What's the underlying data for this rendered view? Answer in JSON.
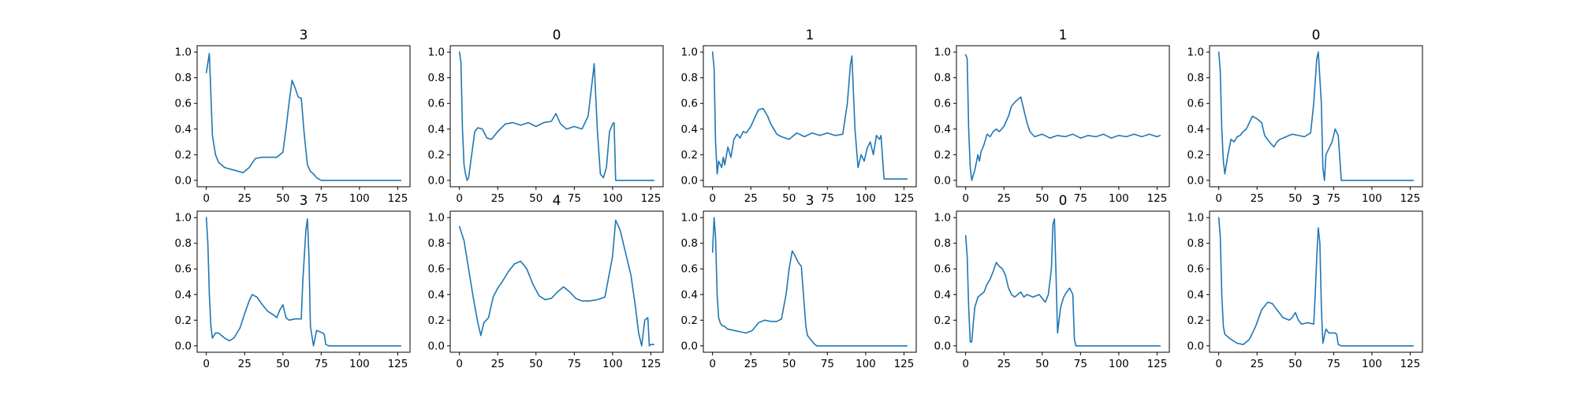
{
  "colors": {
    "series": "#1f77b4",
    "axes": "#000000",
    "background": "#ffffff"
  },
  "chart_data": [
    {
      "type": "line",
      "title": "3",
      "xlim": [
        -6,
        133
      ],
      "ylim": [
        -0.05,
        1.05
      ],
      "xticks": [
        "0",
        "25",
        "50",
        "75",
        "100",
        "125"
      ],
      "yticks": [
        "0.0",
        "0.2",
        "0.4",
        "0.6",
        "0.8",
        "1.0"
      ],
      "grid": false,
      "series": [
        {
          "x": [
            0,
            2,
            4,
            6,
            8,
            12,
            18,
            24,
            28,
            32,
            36,
            40,
            46,
            50,
            52,
            54,
            56,
            58,
            60,
            62,
            64,
            66,
            68,
            70,
            72,
            75,
            80,
            90,
            100,
            110,
            127
          ],
          "values": [
            0.84,
            0.99,
            0.35,
            0.2,
            0.14,
            0.1,
            0.08,
            0.06,
            0.1,
            0.17,
            0.18,
            0.18,
            0.18,
            0.22,
            0.4,
            0.6,
            0.78,
            0.72,
            0.65,
            0.64,
            0.35,
            0.12,
            0.07,
            0.05,
            0.02,
            0.0,
            0.0,
            0.0,
            0.0,
            0.0,
            0.0
          ]
        }
      ]
    },
    {
      "type": "line",
      "title": "0",
      "xlim": [
        -6,
        133
      ],
      "ylim": [
        -0.05,
        1.05
      ],
      "xticks": [
        "0",
        "25",
        "50",
        "75",
        "100",
        "125"
      ],
      "yticks": [
        "0.0",
        "0.2",
        "0.4",
        "0.6",
        "0.8",
        "1.0"
      ],
      "grid": false,
      "series": [
        {
          "x": [
            0,
            1,
            2,
            3,
            4,
            5,
            6,
            8,
            10,
            12,
            15,
            18,
            21,
            25,
            30,
            35,
            40,
            45,
            50,
            55,
            60,
            63,
            66,
            70,
            75,
            80,
            84,
            86,
            88,
            90,
            92,
            94,
            96,
            98,
            100,
            101,
            102,
            110,
            120,
            127
          ],
          "values": [
            1.0,
            0.92,
            0.4,
            0.12,
            0.05,
            0.0,
            0.02,
            0.2,
            0.38,
            0.41,
            0.4,
            0.33,
            0.32,
            0.38,
            0.44,
            0.45,
            0.43,
            0.45,
            0.42,
            0.45,
            0.46,
            0.52,
            0.44,
            0.4,
            0.42,
            0.4,
            0.5,
            0.7,
            0.91,
            0.4,
            0.05,
            0.02,
            0.1,
            0.38,
            0.44,
            0.45,
            0.0,
            0.0,
            0.0,
            0.0
          ]
        }
      ]
    },
    {
      "type": "line",
      "title": "1",
      "xlim": [
        -6,
        133
      ],
      "ylim": [
        -0.05,
        1.05
      ],
      "xticks": [
        "0",
        "25",
        "50",
        "75",
        "100",
        "125"
      ],
      "yticks": [
        "0.0",
        "0.2",
        "0.4",
        "0.6",
        "0.8",
        "1.0"
      ],
      "grid": false,
      "series": [
        {
          "x": [
            0,
            1,
            2,
            3,
            4,
            6,
            7,
            8,
            10,
            12,
            14,
            16,
            18,
            20,
            22,
            25,
            28,
            30,
            33,
            36,
            38,
            40,
            42,
            45,
            50,
            55,
            60,
            65,
            70,
            75,
            80,
            85,
            88,
            90,
            91,
            93,
            95,
            97,
            99,
            101,
            103,
            105,
            107,
            109,
            110,
            112,
            120,
            127
          ],
          "values": [
            1.0,
            0.88,
            0.3,
            0.05,
            0.15,
            0.1,
            0.18,
            0.12,
            0.26,
            0.18,
            0.32,
            0.36,
            0.33,
            0.38,
            0.37,
            0.42,
            0.5,
            0.55,
            0.56,
            0.5,
            0.44,
            0.4,
            0.36,
            0.34,
            0.32,
            0.37,
            0.34,
            0.37,
            0.35,
            0.37,
            0.35,
            0.36,
            0.6,
            0.9,
            0.97,
            0.4,
            0.1,
            0.2,
            0.15,
            0.25,
            0.3,
            0.2,
            0.35,
            0.32,
            0.35,
            0.01,
            0.01,
            0.01
          ]
        }
      ]
    },
    {
      "type": "line",
      "title": "1",
      "xlim": [
        -6,
        133
      ],
      "ylim": [
        -0.05,
        1.05
      ],
      "xticks": [
        "0",
        "25",
        "50",
        "75",
        "100",
        "125"
      ],
      "yticks": [
        "0.0",
        "0.2",
        "0.4",
        "0.6",
        "0.8",
        "1.0"
      ],
      "grid": false,
      "series": [
        {
          "x": [
            0,
            1,
            2,
            3,
            4,
            6,
            8,
            9,
            10,
            12,
            14,
            16,
            18,
            20,
            22,
            25,
            28,
            30,
            33,
            36,
            38,
            40,
            42,
            45,
            50,
            55,
            60,
            65,
            70,
            75,
            80,
            85,
            90,
            95,
            100,
            105,
            110,
            115,
            120,
            125,
            127
          ],
          "values": [
            0.98,
            0.95,
            0.4,
            0.1,
            0.0,
            0.08,
            0.2,
            0.15,
            0.22,
            0.28,
            0.36,
            0.34,
            0.38,
            0.4,
            0.38,
            0.42,
            0.5,
            0.58,
            0.62,
            0.65,
            0.55,
            0.45,
            0.38,
            0.34,
            0.36,
            0.33,
            0.35,
            0.34,
            0.36,
            0.33,
            0.35,
            0.34,
            0.36,
            0.33,
            0.35,
            0.34,
            0.36,
            0.34,
            0.36,
            0.34,
            0.35
          ]
        }
      ]
    },
    {
      "type": "line",
      "title": "0",
      "xlim": [
        -6,
        133
      ],
      "ylim": [
        -0.05,
        1.05
      ],
      "xticks": [
        "0",
        "25",
        "50",
        "75",
        "100",
        "125"
      ],
      "yticks": [
        "0.0",
        "0.2",
        "0.4",
        "0.6",
        "0.8",
        "1.0"
      ],
      "grid": false,
      "series": [
        {
          "x": [
            0,
            1,
            2,
            3,
            4,
            6,
            8,
            10,
            12,
            14,
            16,
            18,
            20,
            22,
            25,
            28,
            30,
            33,
            36,
            38,
            40,
            44,
            48,
            52,
            56,
            60,
            62,
            64,
            65,
            67,
            68,
            69,
            70,
            72,
            74,
            76,
            78,
            80,
            100,
            127
          ],
          "values": [
            1.0,
            0.85,
            0.4,
            0.15,
            0.05,
            0.2,
            0.32,
            0.3,
            0.34,
            0.35,
            0.38,
            0.4,
            0.45,
            0.5,
            0.48,
            0.45,
            0.35,
            0.3,
            0.26,
            0.3,
            0.32,
            0.34,
            0.36,
            0.35,
            0.34,
            0.37,
            0.6,
            0.95,
            1.0,
            0.6,
            0.1,
            0.0,
            0.2,
            0.25,
            0.3,
            0.4,
            0.35,
            0.0,
            0.0,
            0.0
          ]
        }
      ]
    },
    {
      "type": "line",
      "title": "3",
      "xlim": [
        -6,
        133
      ],
      "ylim": [
        -0.05,
        1.05
      ],
      "xticks": [
        "0",
        "25",
        "50",
        "75",
        "100",
        "125"
      ],
      "yticks": [
        "0.0",
        "0.2",
        "0.4",
        "0.6",
        "0.8",
        "1.0"
      ],
      "grid": false,
      "series": [
        {
          "x": [
            0,
            1,
            2,
            3,
            4,
            6,
            8,
            12,
            15,
            18,
            22,
            25,
            28,
            30,
            33,
            36,
            40,
            44,
            46,
            48,
            50,
            52,
            54,
            58,
            62,
            63,
            65,
            66,
            67,
            68,
            70,
            72,
            76,
            77,
            78,
            80,
            90,
            100,
            110,
            127
          ],
          "values": [
            1.0,
            0.8,
            0.4,
            0.15,
            0.06,
            0.1,
            0.1,
            0.06,
            0.04,
            0.06,
            0.14,
            0.25,
            0.35,
            0.4,
            0.38,
            0.33,
            0.27,
            0.24,
            0.22,
            0.28,
            0.32,
            0.22,
            0.2,
            0.21,
            0.21,
            0.5,
            0.9,
            0.99,
            0.7,
            0.15,
            0.0,
            0.12,
            0.1,
            0.09,
            0.01,
            0.0,
            0.0,
            0.0,
            0.0,
            0.0
          ]
        }
      ]
    },
    {
      "type": "line",
      "title": "4",
      "xlim": [
        -6,
        133
      ],
      "ylim": [
        -0.05,
        1.05
      ],
      "xticks": [
        "0",
        "25",
        "50",
        "75",
        "100",
        "125"
      ],
      "yticks": [
        "0.0",
        "0.2",
        "0.4",
        "0.6",
        "0.8",
        "1.0"
      ],
      "grid": false,
      "series": [
        {
          "x": [
            0,
            3,
            6,
            9,
            12,
            14,
            16,
            19,
            22,
            25,
            28,
            32,
            36,
            40,
            44,
            48,
            52,
            56,
            60,
            64,
            68,
            72,
            76,
            80,
            85,
            90,
            95,
            100,
            102,
            105,
            108,
            112,
            115,
            117,
            119,
            121,
            123,
            124,
            125,
            127
          ],
          "values": [
            0.93,
            0.82,
            0.6,
            0.38,
            0.18,
            0.08,
            0.18,
            0.22,
            0.38,
            0.45,
            0.5,
            0.58,
            0.64,
            0.66,
            0.6,
            0.48,
            0.39,
            0.36,
            0.37,
            0.42,
            0.46,
            0.42,
            0.37,
            0.35,
            0.35,
            0.36,
            0.38,
            0.7,
            0.98,
            0.9,
            0.75,
            0.55,
            0.3,
            0.1,
            0.0,
            0.2,
            0.22,
            0.0,
            0.01,
            0.01
          ]
        }
      ]
    },
    {
      "type": "line",
      "title": "3",
      "xlim": [
        -6,
        133
      ],
      "ylim": [
        -0.05,
        1.05
      ],
      "xticks": [
        "0",
        "25",
        "50",
        "75",
        "100",
        "125"
      ],
      "yticks": [
        "0.0",
        "0.2",
        "0.4",
        "0.6",
        "0.8",
        "1.0"
      ],
      "grid": false,
      "series": [
        {
          "x": [
            0,
            1,
            2,
            3,
            4,
            5,
            6,
            8,
            10,
            14,
            18,
            22,
            26,
            30,
            34,
            38,
            42,
            45,
            48,
            50,
            52,
            54,
            56,
            58,
            60,
            61,
            62,
            64,
            66,
            68,
            70,
            75,
            80,
            90,
            100,
            110,
            127
          ],
          "values": [
            0.73,
            1.0,
            0.85,
            0.4,
            0.22,
            0.18,
            0.16,
            0.15,
            0.13,
            0.12,
            0.11,
            0.1,
            0.12,
            0.18,
            0.2,
            0.19,
            0.19,
            0.21,
            0.4,
            0.6,
            0.74,
            0.7,
            0.65,
            0.62,
            0.3,
            0.15,
            0.08,
            0.05,
            0.02,
            0.0,
            0.0,
            0.0,
            0.0,
            0.0,
            0.0,
            0.0,
            0.0
          ]
        }
      ]
    },
    {
      "type": "line",
      "title": "0",
      "xlim": [
        -6,
        133
      ],
      "ylim": [
        -0.05,
        1.05
      ],
      "xticks": [
        "0",
        "25",
        "50",
        "75",
        "100",
        "125"
      ],
      "yticks": [
        "0.0",
        "0.2",
        "0.4",
        "0.6",
        "0.8",
        "1.0"
      ],
      "grid": false,
      "series": [
        {
          "x": [
            0,
            1,
            2,
            3,
            4,
            5,
            6,
            8,
            10,
            12,
            14,
            16,
            18,
            20,
            22,
            24,
            26,
            28,
            30,
            32,
            34,
            36,
            38,
            40,
            44,
            48,
            52,
            54,
            56,
            57,
            58,
            59,
            60,
            62,
            64,
            66,
            68,
            70,
            71,
            72,
            75,
            90,
            110,
            127
          ],
          "values": [
            0.86,
            0.7,
            0.3,
            0.03,
            0.03,
            0.18,
            0.3,
            0.38,
            0.4,
            0.42,
            0.48,
            0.52,
            0.58,
            0.65,
            0.62,
            0.6,
            0.55,
            0.45,
            0.4,
            0.38,
            0.4,
            0.42,
            0.38,
            0.4,
            0.38,
            0.4,
            0.34,
            0.4,
            0.6,
            0.95,
            0.99,
            0.55,
            0.1,
            0.3,
            0.38,
            0.42,
            0.45,
            0.4,
            0.05,
            0.0,
            0.0,
            0.0,
            0.0,
            0.0
          ]
        }
      ]
    },
    {
      "type": "line",
      "title": "3",
      "xlim": [
        -6,
        133
      ],
      "ylim": [
        -0.05,
        1.05
      ],
      "xticks": [
        "0",
        "25",
        "50",
        "75",
        "100",
        "125"
      ],
      "yticks": [
        "0.0",
        "0.2",
        "0.4",
        "0.6",
        "0.8",
        "1.0"
      ],
      "grid": false,
      "series": [
        {
          "x": [
            0,
            1,
            2,
            3,
            4,
            6,
            8,
            12,
            16,
            20,
            24,
            28,
            32,
            35,
            38,
            42,
            46,
            48,
            50,
            52,
            54,
            58,
            62,
            63,
            64,
            65,
            66,
            67,
            68,
            70,
            72,
            76,
            77,
            78,
            80,
            90,
            100,
            110,
            127
          ],
          "values": [
            1.0,
            0.85,
            0.4,
            0.15,
            0.09,
            0.07,
            0.05,
            0.02,
            0.01,
            0.05,
            0.15,
            0.28,
            0.34,
            0.33,
            0.28,
            0.22,
            0.2,
            0.22,
            0.26,
            0.2,
            0.17,
            0.18,
            0.17,
            0.4,
            0.7,
            0.92,
            0.8,
            0.3,
            0.02,
            0.13,
            0.1,
            0.1,
            0.09,
            0.01,
            0.0,
            0.0,
            0.0,
            0.0,
            0.0
          ]
        }
      ]
    }
  ]
}
